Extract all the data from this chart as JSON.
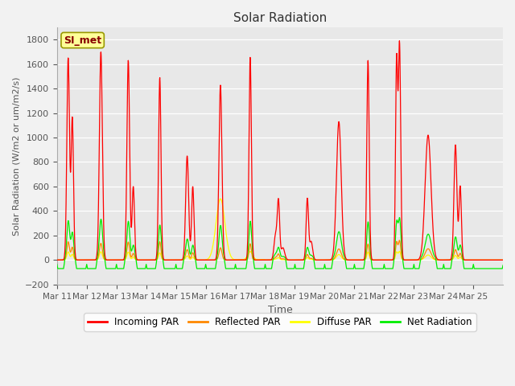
{
  "title": "Solar Radiation",
  "xlabel": "Time",
  "ylabel": "Solar Radiation (W/m2 or um/m2/s)",
  "ylim": [
    -200,
    1900
  ],
  "yticks": [
    -200,
    0,
    200,
    400,
    600,
    800,
    1000,
    1200,
    1400,
    1600,
    1800
  ],
  "xtick_labels": [
    "Mar 11",
    "Mar 12",
    "Mar 13",
    "Mar 14",
    "Mar 15",
    "Mar 16",
    "Mar 17",
    "Mar 18",
    "Mar 19",
    "Mar 20",
    "Mar 21",
    "Mar 22",
    "Mar 23",
    "Mar 24",
    "Mar 25"
  ],
  "site_label": "SI_met",
  "colors": {
    "incoming": "#FF0000",
    "reflected": "#FF8800",
    "diffuse": "#FFFF00",
    "net": "#00EE00"
  },
  "legend": [
    "Incoming PAR",
    "Reflected PAR",
    "Diffuse PAR",
    "Net Radiation"
  ],
  "background_color": "#E8E8E8",
  "grid_color": "#FFFFFF",
  "days": 15,
  "pts_per_day": 144,
  "day_peaks": [
    1650,
    1700,
    1630,
    1490,
    850,
    1430,
    1660,
    470,
    500,
    1130,
    1630,
    1760,
    1020,
    940,
    0
  ],
  "day_widths": [
    0.12,
    0.1,
    0.12,
    0.13,
    0.25,
    0.3,
    0.1,
    0.35,
    0.35,
    0.2,
    0.12,
    0.1,
    0.25,
    0.2,
    0.0
  ],
  "night_net": -70
}
